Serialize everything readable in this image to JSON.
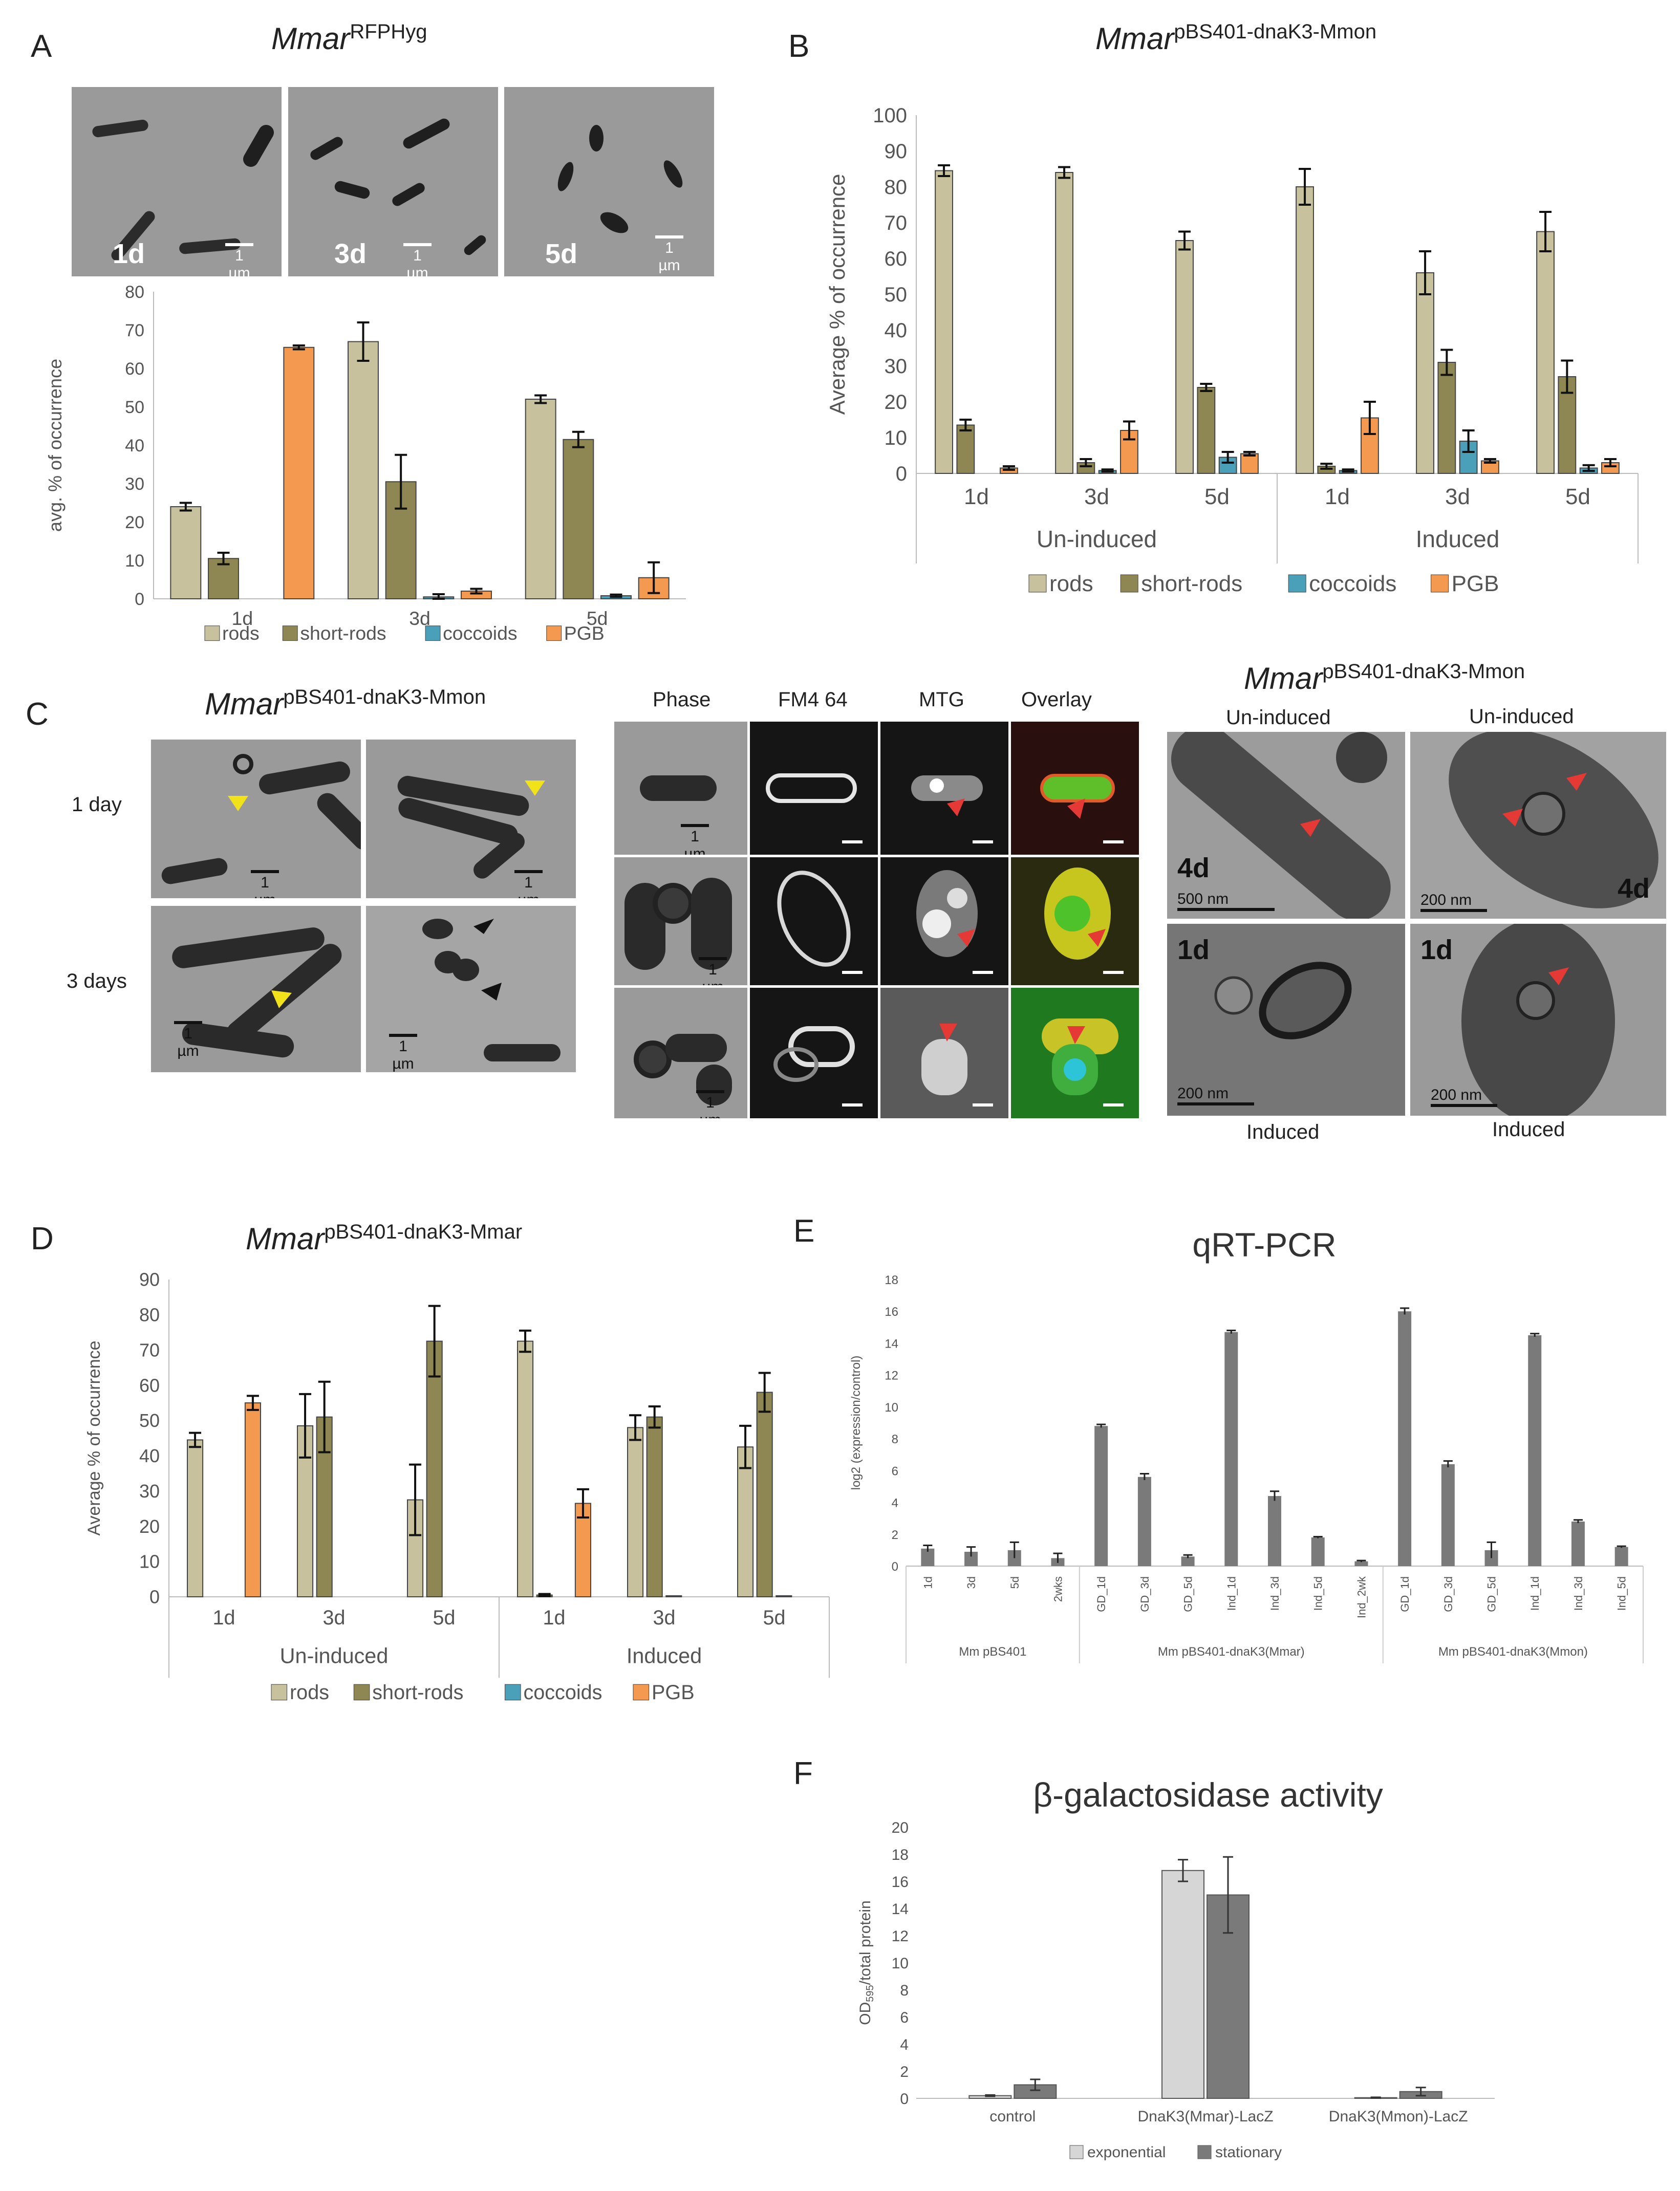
{
  "colors": {
    "rods": "#c8c19d",
    "short_rods": "#8e8653",
    "coccoids": "#4a9fb9",
    "pgb": "#f39a50",
    "gray_bar": "#7a7a7a",
    "light_bar": "#d6d6d6"
  },
  "panel_a": {
    "letter": "A",
    "title_main": "Mmar",
    "title_sup": "RFPHyg",
    "images": [
      {
        "label": "1d",
        "scale": "1 µm"
      },
      {
        "label": "3d",
        "scale": "1 µm"
      },
      {
        "label": "5d",
        "scale": "1 µm"
      }
    ]
  },
  "panel_b": {
    "letter": "B",
    "title_main": "Mmar",
    "title_sup": "pBS401-dnaK3-Mmon"
  },
  "panel_c": {
    "letter": "C",
    "title_main": "Mmar",
    "title_sup": "pBS401-dnaK3-Mmon",
    "row_labels": [
      "1 day",
      "3 days"
    ],
    "scale_labels": [
      "1 µm",
      "1 µm",
      "1 µm",
      "1 µm"
    ],
    "channels": [
      "Phase",
      "FM4 64",
      "MTG",
      "Overlay"
    ],
    "fl_scale": "1 µm",
    "tem_title_main": "Mmar",
    "tem_title_sup": "pBS401-dnaK3-Mmon",
    "tem_top_labels": [
      "Un-induced",
      "Un-induced"
    ],
    "tem_bottom_labels": [
      "Induced",
      "Induced"
    ],
    "tem_panels": [
      {
        "day": "4d",
        "scale": "500 nm"
      },
      {
        "day": "4d",
        "scale": "200 nm"
      },
      {
        "day": "1d",
        "scale": "200 nm"
      },
      {
        "day": "1d",
        "scale": "200 nm"
      }
    ]
  },
  "panel_d": {
    "letter": "D",
    "title_main": "Mmar",
    "title_sup": "pBS401-dnaK3-Mmar"
  },
  "panel_e": {
    "letter": "E"
  },
  "panel_f": {
    "letter": "F"
  },
  "chart_data": [
    {
      "id": "A",
      "type": "bar",
      "categories": [
        "1d",
        "3d",
        "5d"
      ],
      "ylabel": "avg. % of occurrence",
      "ylim": [
        0,
        80
      ],
      "yticks": [
        0,
        10,
        20,
        30,
        40,
        50,
        60,
        70,
        80
      ],
      "series": [
        {
          "name": "rods",
          "values": [
            24,
            67,
            52
          ],
          "errors": [
            1,
            5,
            1
          ]
        },
        {
          "name": "short-rods",
          "values": [
            10.5,
            30.5,
            41.5
          ],
          "errors": [
            1.5,
            7,
            2
          ]
        },
        {
          "name": "coccoids",
          "values": [
            0,
            0.5,
            0.8
          ],
          "errors": [
            0,
            0.7,
            0.3
          ]
        },
        {
          "name": "PGB",
          "values": [
            65.5,
            2,
            5.5
          ],
          "errors": [
            0.5,
            0.6,
            4
          ]
        }
      ],
      "legend": "bottom"
    },
    {
      "id": "B",
      "type": "bar",
      "categories": [
        "1d",
        "3d",
        "5d",
        "1d",
        "3d",
        "5d"
      ],
      "groups": [
        "Un-induced",
        "Induced"
      ],
      "ylabel": "Average % of occurrence",
      "ylim": [
        0,
        100
      ],
      "yticks": [
        0,
        10,
        20,
        30,
        40,
        50,
        60,
        70,
        80,
        90,
        100
      ],
      "series": [
        {
          "name": "rods",
          "values": [
            84.5,
            84,
            65,
            80,
            56,
            67.5
          ],
          "errors": [
            1.5,
            1.5,
            2.5,
            5,
            6,
            5.5
          ]
        },
        {
          "name": "short-rods",
          "values": [
            13.5,
            3,
            24,
            2,
            31,
            27
          ],
          "errors": [
            1.5,
            1,
            1,
            0.7,
            3.5,
            4.5
          ]
        },
        {
          "name": "coccoids",
          "values": [
            0,
            0.8,
            4.5,
            0.8,
            9,
            1.5
          ],
          "errors": [
            0,
            0.3,
            1.5,
            0.3,
            3,
            0.8
          ]
        },
        {
          "name": "PGB",
          "values": [
            1.5,
            12,
            5.5,
            15.5,
            3.5,
            3
          ],
          "errors": [
            0.5,
            2.5,
            0.5,
            4.5,
            0.5,
            1
          ]
        }
      ],
      "legend": "bottom"
    },
    {
      "id": "D",
      "type": "bar",
      "categories": [
        "1d",
        "3d",
        "5d",
        "1d",
        "3d",
        "5d"
      ],
      "groups": [
        "Un-induced",
        "Induced"
      ],
      "ylabel": "Average % of occurrence",
      "ylim": [
        0,
        90
      ],
      "yticks": [
        0,
        10,
        20,
        30,
        40,
        50,
        60,
        70,
        80,
        90
      ],
      "series": [
        {
          "name": "rods",
          "values": [
            44.5,
            48.5,
            27.5,
            72.5,
            48,
            42.5
          ],
          "errors": [
            2,
            9,
            10,
            3,
            3.5,
            6
          ]
        },
        {
          "name": "short-rods",
          "values": [
            0,
            51,
            72.5,
            0.5,
            51,
            58
          ],
          "errors": [
            0,
            10,
            10,
            0.3,
            3,
            5.5
          ]
        },
        {
          "name": "coccoids",
          "values": [
            0,
            0,
            0,
            0,
            0.3,
            0.3
          ],
          "errors": [
            0,
            0,
            0,
            0,
            0,
            0
          ]
        },
        {
          "name": "PGB",
          "values": [
            55,
            0,
            0,
            26.5,
            0,
            0
          ],
          "errors": [
            2,
            0,
            0,
            4,
            0,
            0
          ]
        }
      ],
      "legend": "bottom"
    },
    {
      "id": "E",
      "type": "bar",
      "title": "qRT-PCR",
      "ylabel": "log2 (expression/control)",
      "ylim": [
        0,
        18
      ],
      "yticks": [
        0,
        2,
        4,
        6,
        8,
        10,
        12,
        14,
        16,
        18
      ],
      "categories": [
        "1d",
        "3d",
        "5d",
        "2wks",
        "GD_1d",
        "GD_3d",
        "GD_5d",
        "Ind_1d",
        "Ind_3d",
        "Ind_5d",
        "Ind_2wk",
        "GD_1d",
        "GD_3d",
        "GD_5d",
        "Ind_1d",
        "Ind_3d",
        "Ind_5d"
      ],
      "groups": [
        {
          "label": "Mm pBS401",
          "count": 4
        },
        {
          "label": "Mm pBS401-dnaK3(Mmar)",
          "count": 7
        },
        {
          "label": "Mm pBS401-dnaK3(Mmon)",
          "count": 6
        }
      ],
      "values": [
        1.1,
        0.9,
        1.0,
        0.5,
        8.8,
        5.6,
        0.6,
        14.7,
        4.4,
        1.8,
        0.3,
        16.0,
        6.4,
        1.0,
        14.5,
        2.8,
        1.2
      ],
      "errors": [
        0.2,
        0.3,
        0.5,
        0.3,
        0.1,
        0.2,
        0.1,
        0.1,
        0.3,
        0.05,
        0.05,
        0.2,
        0.2,
        0.5,
        0.1,
        0.1,
        0.05
      ]
    },
    {
      "id": "F",
      "type": "bar",
      "title": "β-galactosidase activity",
      "ylabel_main": "OD",
      "ylabel_sub": "595",
      "ylabel_rest": "/total protein",
      "ylim": [
        0,
        20
      ],
      "yticks": [
        0,
        2,
        4,
        6,
        8,
        10,
        12,
        14,
        16,
        18,
        20
      ],
      "categories": [
        "control",
        "DnaK3(Mmar)-LacZ",
        "DnaK3(Mmon)-LacZ"
      ],
      "series": [
        {
          "name": "exponential",
          "values": [
            0.2,
            16.8,
            0.05
          ],
          "errors": [
            0.05,
            0.8,
            0.03
          ]
        },
        {
          "name": "stationary",
          "values": [
            1.0,
            15.0,
            0.5
          ],
          "errors": [
            0.4,
            2.8,
            0.3
          ]
        }
      ],
      "legend": "bottom"
    }
  ]
}
